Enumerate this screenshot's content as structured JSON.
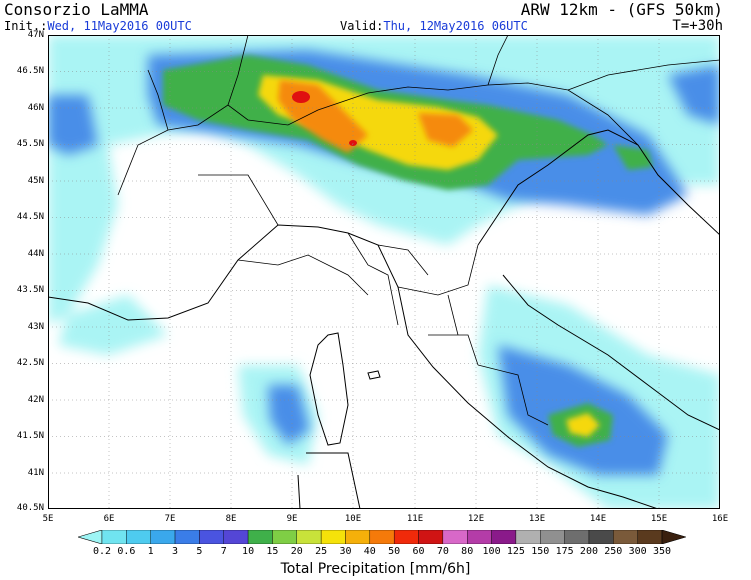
{
  "header": {
    "title": "Consorzio LaMMA",
    "model": "ARW 12km - (GFS 50km)",
    "init_label": "Init.:",
    "init_value": "Wed, 11May2016 00UTC",
    "valid_label": "Valid:",
    "valid_value": "Thu, 12May2016 06UTC",
    "forecast_step": "T=+30h"
  },
  "map": {
    "lat_labels": [
      "47N",
      "46.5N",
      "46N",
      "45.5N",
      "45N",
      "44.5N",
      "44N",
      "43.5N",
      "43N",
      "42.5N",
      "42N",
      "41.5N",
      "41N",
      "40.5N"
    ],
    "lon_labels": [
      "5E",
      "6E",
      "7E",
      "8E",
      "9E",
      "10E",
      "11E",
      "12E",
      "13E",
      "14E",
      "15E",
      "16E"
    ],
    "lat_range": [
      40.5,
      47
    ],
    "lon_range": [
      5,
      16
    ]
  },
  "legend": {
    "title": "Total Precipitation [mm/6h]",
    "levels": [
      "0.2",
      "0.6",
      "1",
      "3",
      "5",
      "7",
      "10",
      "15",
      "20",
      "25",
      "30",
      "40",
      "50",
      "60",
      "70",
      "80",
      "100",
      "125",
      "150",
      "175",
      "200",
      "250",
      "300",
      "350"
    ],
    "colors": [
      "#9ef5f5",
      "#70e4f0",
      "#4ecbef",
      "#3aa8ec",
      "#3a7de8",
      "#4a54e0",
      "#5446d6",
      "#3fb04a",
      "#7fce45",
      "#c8e23a",
      "#f5e20a",
      "#f5b00a",
      "#f57a0a",
      "#f02a0a",
      "#d01414",
      "#d868c8",
      "#b43ca8",
      "#8a1a8a",
      "#b0b0b0",
      "#909090",
      "#6e6e6e",
      "#4a4a4a",
      "#7a5a3a",
      "#5a3a1e",
      "#3a200e"
    ]
  }
}
